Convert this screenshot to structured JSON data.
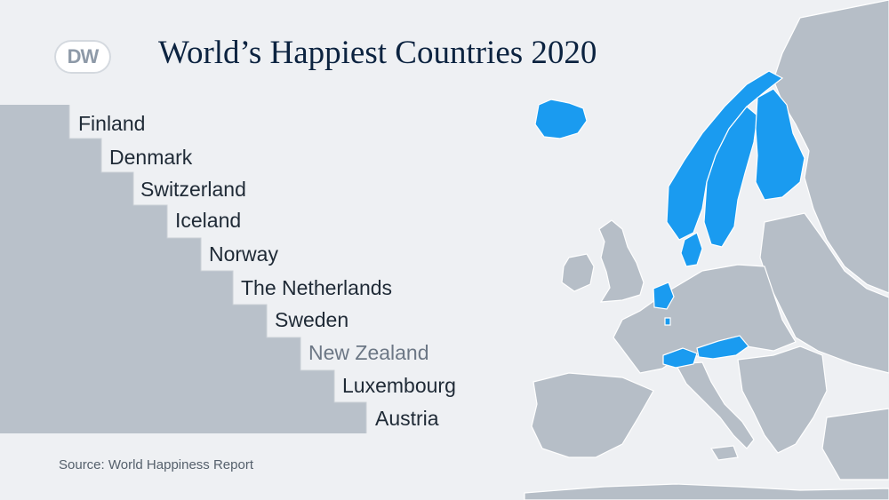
{
  "brand": {
    "logo_text": "DW"
  },
  "title": "World’s Happiest Countries 2020",
  "ranking": [
    {
      "name": "Finland"
    },
    {
      "name": "Denmark"
    },
    {
      "name": "Switzerland"
    },
    {
      "name": "Iceland"
    },
    {
      "name": "Norway"
    },
    {
      "name": "The Netherlands"
    },
    {
      "name": "Sweden"
    },
    {
      "name": "New Zealand"
    },
    {
      "name": "Luxembourg"
    },
    {
      "name": "Austria"
    }
  ],
  "source": "Source: World Happiness Report",
  "colors": {
    "highlight": "#1a9bf0",
    "land": "#b6bec7",
    "staircase": "#b9c1ca",
    "title": "#0c2340",
    "background": "#eef0f3"
  }
}
